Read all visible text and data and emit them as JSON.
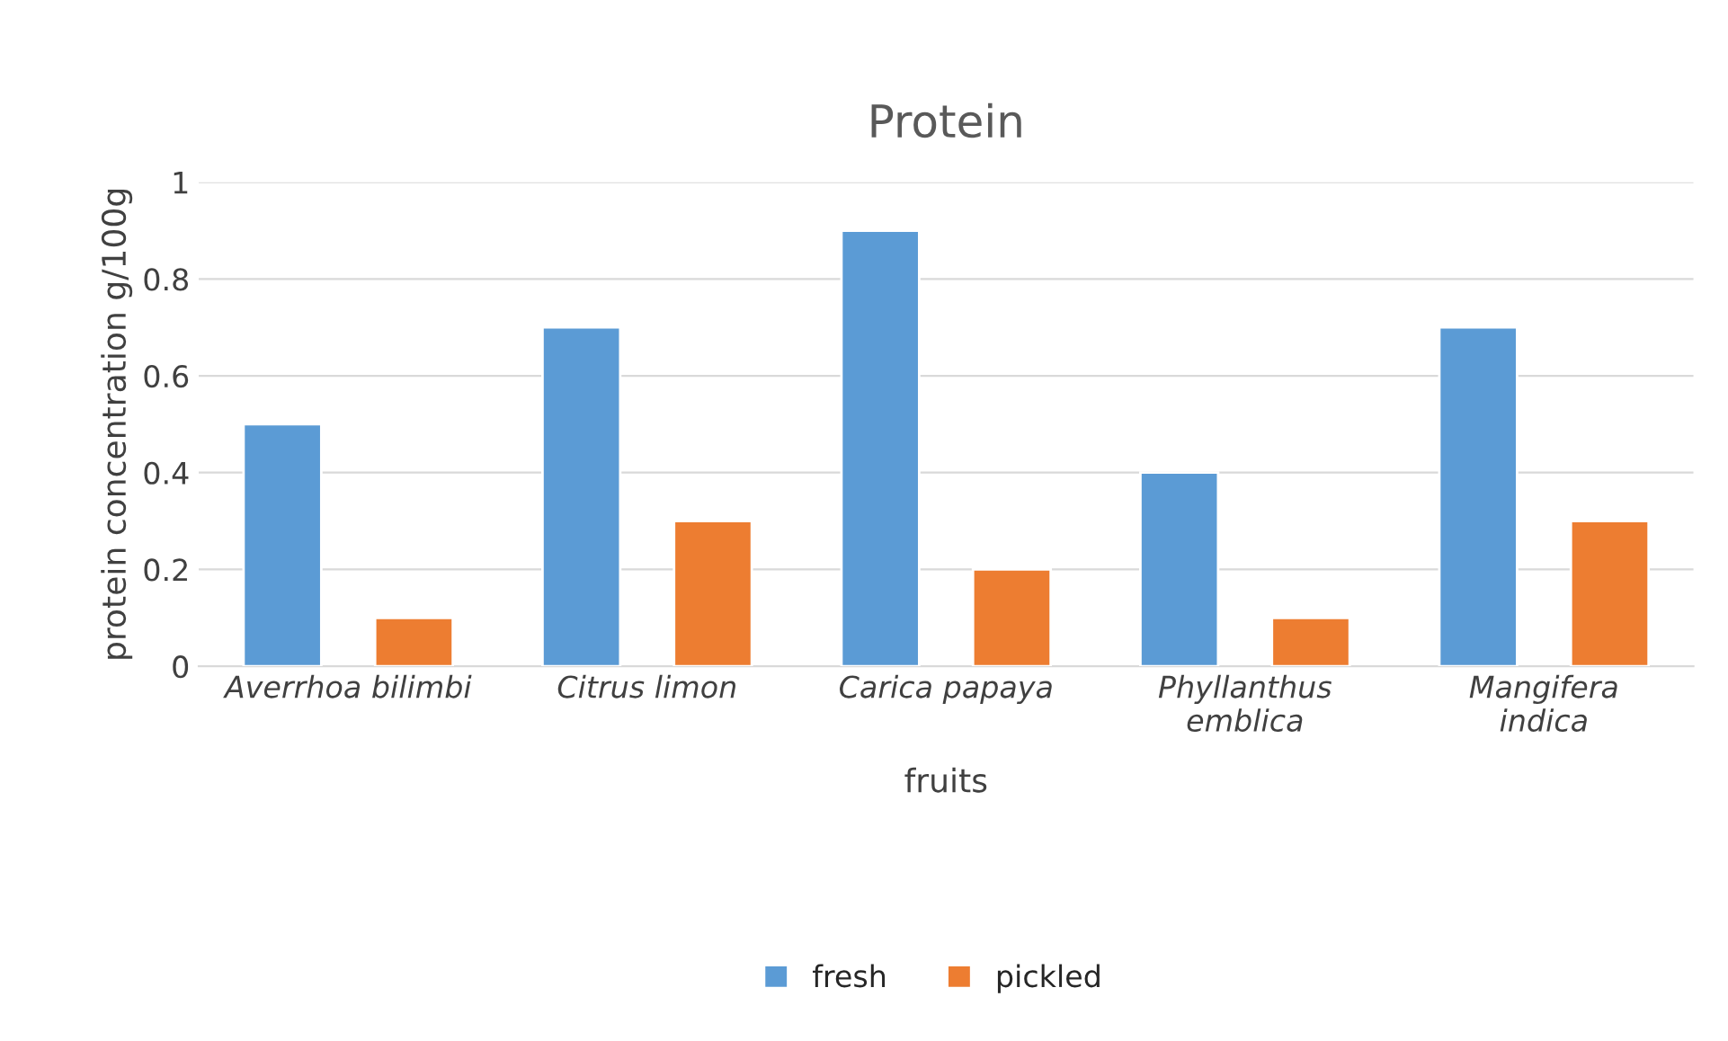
{
  "chart_data": {
    "type": "bar",
    "title": "Protein",
    "xlabel": "fruits",
    "ylabel": "protein concentration g/100g",
    "categories": [
      "Averrhoa bilimbi",
      "Citrus limon",
      "Carica papaya",
      "Phyllanthus\nemblica",
      "Mangifera\nindica"
    ],
    "series": [
      {
        "name": "fresh",
        "color": "#5b9bd5",
        "values": [
          0.5,
          0.7,
          0.9,
          0.4,
          0.7
        ]
      },
      {
        "name": "pickled",
        "color": "#ed7d31",
        "values": [
          0.1,
          0.3,
          0.2,
          0.1,
          0.3
        ]
      }
    ],
    "ylim": [
      0,
      1
    ],
    "yticks": [
      0,
      0.2,
      0.4,
      0.6,
      0.8,
      1
    ],
    "grid": "y",
    "legend": "bottom"
  }
}
